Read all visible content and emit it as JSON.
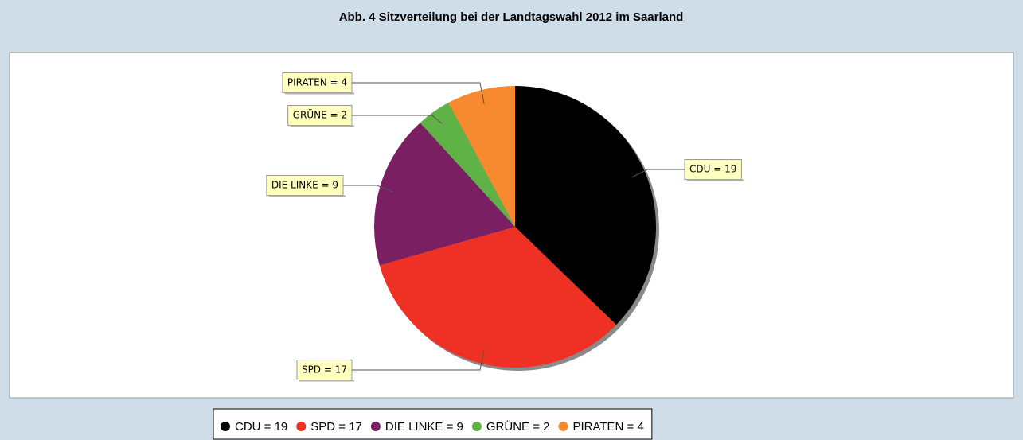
{
  "chart_data": {
    "type": "pie",
    "title": "Abb. 4 Sitzverteilung bei der Landtagswahl 2012 im Saarland",
    "values": [
      19,
      17,
      9,
      2,
      4
    ],
    "value_labels": [
      "CDU = 19",
      "SPD = 17",
      "DIE LINKE = 9",
      "GRÜNE = 2",
      "PIRATEN = 4"
    ],
    "colors": [
      "#000000",
      "#ee3124",
      "#7b1f63",
      "#5fb246",
      "#f7892e"
    ]
  }
}
